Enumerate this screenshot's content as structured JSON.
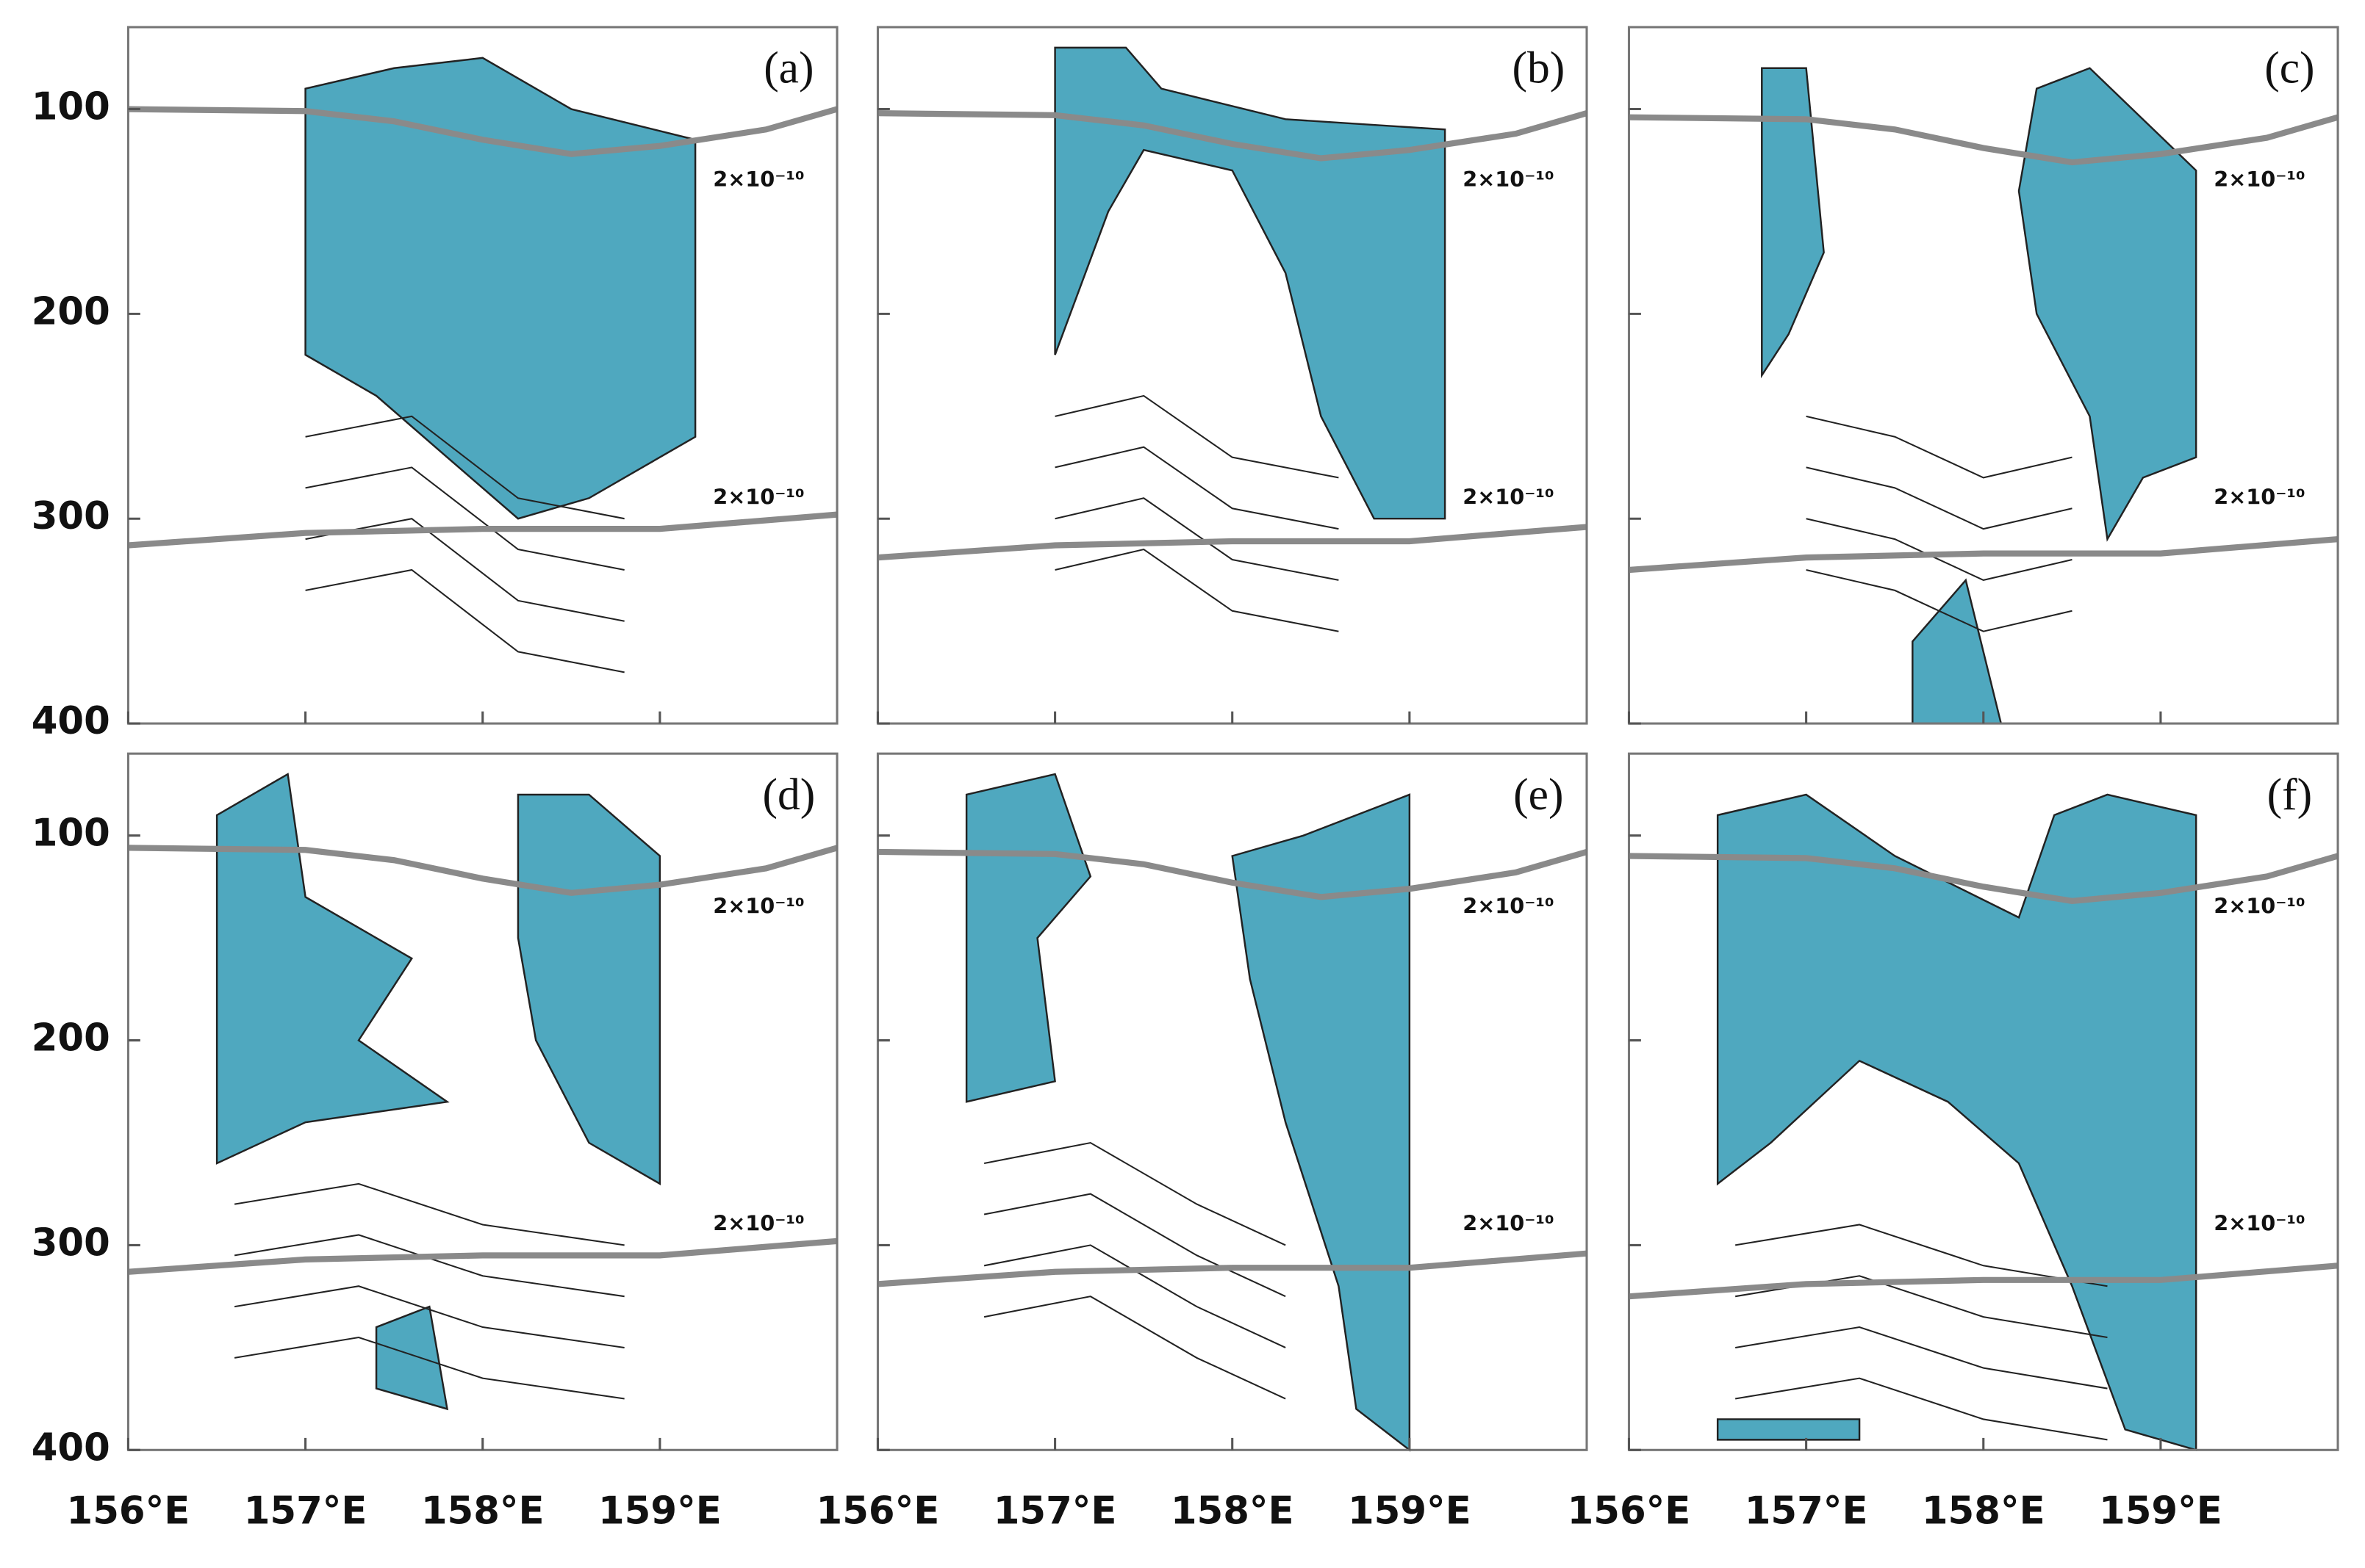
{
  "chart_data": [
    {
      "type": "contour",
      "title": "(a)",
      "xlim": [
        156,
        160
      ],
      "ylim": [
        60,
        400
      ],
      "y_inverted": true,
      "xticks": [
        {
          "value": 156,
          "label": "156°E"
        },
        {
          "value": 157,
          "label": "157°E"
        },
        {
          "value": 158,
          "label": "158°E"
        },
        {
          "value": 159,
          "label": "159°E"
        }
      ],
      "yticks": [
        100,
        200,
        300,
        400
      ],
      "xtick_labels": false,
      "ytick_labels": true,
      "annotations": [
        {
          "text": "2×10⁻¹⁰"
        },
        {
          "text": "2×10⁻¹⁰"
        }
      ],
      "fill_color": "#4fa8bf",
      "line_color": "#8a8a8a"
    },
    {
      "type": "contour",
      "title": "(b)",
      "xlim": [
        156,
        160
      ],
      "ylim": [
        60,
        400
      ],
      "y_inverted": true,
      "xticks": [
        {
          "value": 156,
          "label": "156°E"
        },
        {
          "value": 157,
          "label": "157°E"
        },
        {
          "value": 158,
          "label": "158°E"
        },
        {
          "value": 159,
          "label": "159°E"
        }
      ],
      "yticks": [
        100,
        200,
        300,
        400
      ],
      "xtick_labels": false,
      "ytick_labels": false,
      "annotations": [
        {
          "text": "2×10⁻¹⁰"
        },
        {
          "text": "2×10⁻¹⁰"
        }
      ],
      "fill_color": "#4fa8bf",
      "line_color": "#8a8a8a"
    },
    {
      "type": "contour",
      "title": "(c)",
      "xlim": [
        156,
        160
      ],
      "ylim": [
        60,
        400
      ],
      "y_inverted": true,
      "xticks": [
        {
          "value": 156,
          "label": "156°E"
        },
        {
          "value": 157,
          "label": "157°E"
        },
        {
          "value": 158,
          "label": "158°E"
        },
        {
          "value": 159,
          "label": "159°E"
        }
      ],
      "yticks": [
        100,
        200,
        300,
        400
      ],
      "xtick_labels": false,
      "ytick_labels": false,
      "annotations": [
        {
          "text": "2×10⁻¹⁰"
        },
        {
          "text": "2×10⁻¹⁰"
        }
      ],
      "fill_color": "#4fa8bf",
      "line_color": "#8a8a8a"
    },
    {
      "type": "contour",
      "title": "(d)",
      "xlim": [
        156,
        160
      ],
      "ylim": [
        60,
        400
      ],
      "y_inverted": true,
      "xticks": [
        {
          "value": 156,
          "label": "156°E"
        },
        {
          "value": 157,
          "label": "157°E"
        },
        {
          "value": 158,
          "label": "158°E"
        },
        {
          "value": 159,
          "label": "159°E"
        }
      ],
      "yticks": [
        100,
        200,
        300,
        400
      ],
      "xtick_labels": true,
      "ytick_labels": true,
      "annotations": [
        {
          "text": "2×10⁻¹⁰"
        },
        {
          "text": "2×10⁻¹⁰"
        }
      ],
      "fill_color": "#4fa8bf",
      "line_color": "#8a8a8a"
    },
    {
      "type": "contour",
      "title": "(e)",
      "xlim": [
        156,
        160
      ],
      "ylim": [
        60,
        400
      ],
      "y_inverted": true,
      "xticks": [
        {
          "value": 156,
          "label": "156°E"
        },
        {
          "value": 157,
          "label": "157°E"
        },
        {
          "value": 158,
          "label": "158°E"
        },
        {
          "value": 159,
          "label": "159°E"
        }
      ],
      "yticks": [
        100,
        200,
        300,
        400
      ],
      "xtick_labels": true,
      "ytick_labels": false,
      "annotations": [
        {
          "text": "2×10⁻¹⁰"
        },
        {
          "text": "2×10⁻¹⁰"
        }
      ],
      "fill_color": "#4fa8bf",
      "line_color": "#8a8a8a"
    },
    {
      "type": "contour",
      "title": "(f)",
      "xlim": [
        156,
        160
      ],
      "ylim": [
        60,
        400
      ],
      "y_inverted": true,
      "xticks": [
        {
          "value": 156,
          "label": "156°E"
        },
        {
          "value": 157,
          "label": "157°E"
        },
        {
          "value": 158,
          "label": "158°E"
        },
        {
          "value": 159,
          "label": "159°E"
        }
      ],
      "yticks": [
        100,
        200,
        300,
        400
      ],
      "xtick_labels": true,
      "ytick_labels": false,
      "annotations": [
        {
          "text": "2×10⁻¹⁰"
        },
        {
          "text": "2×10⁻¹⁰"
        }
      ],
      "fill_color": "#4fa8bf",
      "line_color": "#8a8a8a"
    }
  ]
}
